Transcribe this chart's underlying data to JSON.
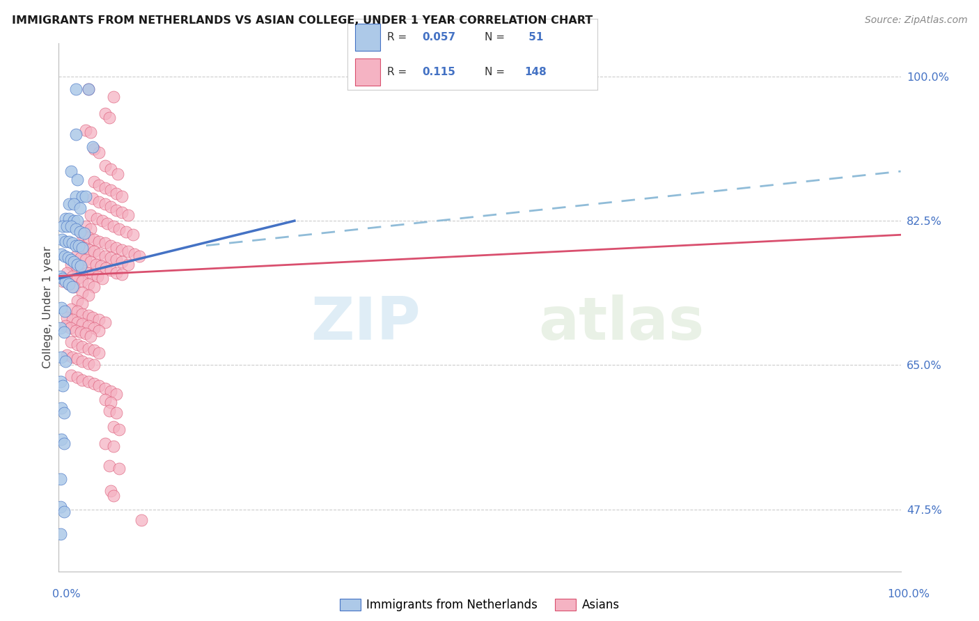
{
  "title": "IMMIGRANTS FROM NETHERLANDS VS ASIAN COLLEGE, UNDER 1 YEAR CORRELATION CHART",
  "source": "Source: ZipAtlas.com",
  "ylabel": "College, Under 1 year",
  "right_yticks": [
    "47.5%",
    "65.0%",
    "82.5%",
    "100.0%"
  ],
  "right_ytick_vals": [
    0.475,
    0.65,
    0.825,
    1.0
  ],
  "color_blue": "#adc9e8",
  "color_pink": "#f5b3c3",
  "line_blue": "#4472c4",
  "line_pink": "#d94f6e",
  "line_dashed_color": "#90bcd8",
  "watermark_zip": "ZIP",
  "watermark_atlas": "atlas",
  "xlim": [
    0.0,
    1.0
  ],
  "ylim": [
    0.4,
    1.04
  ],
  "grid_yvals": [
    0.475,
    0.65,
    0.825,
    1.0
  ],
  "blue_trend_x": [
    0.0,
    0.28
  ],
  "blue_trend_y": [
    0.755,
    0.825
  ],
  "pink_trend_x": [
    0.0,
    1.0
  ],
  "pink_trend_y": [
    0.758,
    0.808
  ],
  "dashed_trend_x": [
    0.175,
    1.0
  ],
  "dashed_trend_y": [
    0.795,
    0.885
  ],
  "blue_points": [
    [
      0.02,
      0.985
    ],
    [
      0.035,
      0.985
    ],
    [
      0.02,
      0.93
    ],
    [
      0.04,
      0.915
    ],
    [
      0.015,
      0.885
    ],
    [
      0.022,
      0.875
    ],
    [
      0.02,
      0.855
    ],
    [
      0.028,
      0.855
    ],
    [
      0.032,
      0.855
    ],
    [
      0.012,
      0.845
    ],
    [
      0.018,
      0.845
    ],
    [
      0.025,
      0.84
    ],
    [
      0.008,
      0.828
    ],
    [
      0.012,
      0.828
    ],
    [
      0.018,
      0.825
    ],
    [
      0.022,
      0.825
    ],
    [
      0.005,
      0.818
    ],
    [
      0.01,
      0.818
    ],
    [
      0.015,
      0.818
    ],
    [
      0.02,
      0.815
    ],
    [
      0.025,
      0.812
    ],
    [
      0.03,
      0.81
    ],
    [
      0.004,
      0.802
    ],
    [
      0.008,
      0.8
    ],
    [
      0.012,
      0.8
    ],
    [
      0.016,
      0.798
    ],
    [
      0.02,
      0.795
    ],
    [
      0.024,
      0.795
    ],
    [
      0.028,
      0.792
    ],
    [
      0.003,
      0.785
    ],
    [
      0.007,
      0.782
    ],
    [
      0.011,
      0.78
    ],
    [
      0.015,
      0.778
    ],
    [
      0.018,
      0.775
    ],
    [
      0.022,
      0.772
    ],
    [
      0.026,
      0.77
    ],
    [
      0.002,
      0.758
    ],
    [
      0.005,
      0.755
    ],
    [
      0.008,
      0.752
    ],
    [
      0.012,
      0.748
    ],
    [
      0.016,
      0.745
    ],
    [
      0.003,
      0.72
    ],
    [
      0.007,
      0.715
    ],
    [
      0.002,
      0.695
    ],
    [
      0.006,
      0.69
    ],
    [
      0.003,
      0.66
    ],
    [
      0.008,
      0.655
    ],
    [
      0.002,
      0.63
    ],
    [
      0.005,
      0.625
    ],
    [
      0.003,
      0.598
    ],
    [
      0.006,
      0.592
    ],
    [
      0.003,
      0.56
    ],
    [
      0.006,
      0.555
    ],
    [
      0.002,
      0.512
    ],
    [
      0.002,
      0.478
    ],
    [
      0.006,
      0.472
    ],
    [
      0.002,
      0.445
    ]
  ],
  "pink_points": [
    [
      0.035,
      0.985
    ],
    [
      0.065,
      0.975
    ],
    [
      0.055,
      0.955
    ],
    [
      0.06,
      0.95
    ],
    [
      0.032,
      0.935
    ],
    [
      0.038,
      0.932
    ],
    [
      0.042,
      0.912
    ],
    [
      0.048,
      0.908
    ],
    [
      0.055,
      0.892
    ],
    [
      0.062,
      0.888
    ],
    [
      0.07,
      0.882
    ],
    [
      0.042,
      0.872
    ],
    [
      0.048,
      0.868
    ],
    [
      0.055,
      0.865
    ],
    [
      0.062,
      0.862
    ],
    [
      0.068,
      0.858
    ],
    [
      0.075,
      0.855
    ],
    [
      0.04,
      0.852
    ],
    [
      0.048,
      0.848
    ],
    [
      0.055,
      0.845
    ],
    [
      0.062,
      0.842
    ],
    [
      0.068,
      0.838
    ],
    [
      0.075,
      0.835
    ],
    [
      0.082,
      0.832
    ],
    [
      0.038,
      0.832
    ],
    [
      0.045,
      0.828
    ],
    [
      0.052,
      0.825
    ],
    [
      0.058,
      0.822
    ],
    [
      0.065,
      0.818
    ],
    [
      0.072,
      0.815
    ],
    [
      0.08,
      0.812
    ],
    [
      0.088,
      0.808
    ],
    [
      0.032,
      0.818
    ],
    [
      0.038,
      0.815
    ],
    [
      0.028,
      0.808
    ],
    [
      0.035,
      0.805
    ],
    [
      0.042,
      0.802
    ],
    [
      0.048,
      0.8
    ],
    [
      0.055,
      0.798
    ],
    [
      0.062,
      0.795
    ],
    [
      0.068,
      0.792
    ],
    [
      0.075,
      0.79
    ],
    [
      0.082,
      0.788
    ],
    [
      0.09,
      0.785
    ],
    [
      0.096,
      0.782
    ],
    [
      0.025,
      0.795
    ],
    [
      0.03,
      0.792
    ],
    [
      0.036,
      0.79
    ],
    [
      0.042,
      0.788
    ],
    [
      0.048,
      0.785
    ],
    [
      0.055,
      0.782
    ],
    [
      0.062,
      0.78
    ],
    [
      0.068,
      0.778
    ],
    [
      0.075,
      0.775
    ],
    [
      0.082,
      0.772
    ],
    [
      0.02,
      0.782
    ],
    [
      0.026,
      0.78
    ],
    [
      0.032,
      0.778
    ],
    [
      0.038,
      0.775
    ],
    [
      0.044,
      0.772
    ],
    [
      0.05,
      0.77
    ],
    [
      0.056,
      0.768
    ],
    [
      0.062,
      0.765
    ],
    [
      0.068,
      0.762
    ],
    [
      0.075,
      0.76
    ],
    [
      0.015,
      0.772
    ],
    [
      0.022,
      0.768
    ],
    [
      0.028,
      0.765
    ],
    [
      0.034,
      0.762
    ],
    [
      0.04,
      0.76
    ],
    [
      0.046,
      0.758
    ],
    [
      0.052,
      0.755
    ],
    [
      0.01,
      0.762
    ],
    [
      0.016,
      0.758
    ],
    [
      0.022,
      0.755
    ],
    [
      0.028,
      0.752
    ],
    [
      0.005,
      0.752
    ],
    [
      0.012,
      0.748
    ],
    [
      0.018,
      0.745
    ],
    [
      0.035,
      0.748
    ],
    [
      0.042,
      0.745
    ],
    [
      0.028,
      0.738
    ],
    [
      0.035,
      0.735
    ],
    [
      0.022,
      0.728
    ],
    [
      0.028,
      0.725
    ],
    [
      0.015,
      0.718
    ],
    [
      0.022,
      0.715
    ],
    [
      0.028,
      0.712
    ],
    [
      0.035,
      0.71
    ],
    [
      0.04,
      0.708
    ],
    [
      0.048,
      0.705
    ],
    [
      0.055,
      0.702
    ],
    [
      0.01,
      0.708
    ],
    [
      0.016,
      0.705
    ],
    [
      0.022,
      0.702
    ],
    [
      0.028,
      0.7
    ],
    [
      0.035,
      0.698
    ],
    [
      0.042,
      0.695
    ],
    [
      0.048,
      0.692
    ],
    [
      0.008,
      0.698
    ],
    [
      0.014,
      0.695
    ],
    [
      0.02,
      0.692
    ],
    [
      0.026,
      0.69
    ],
    [
      0.032,
      0.688
    ],
    [
      0.038,
      0.685
    ],
    [
      0.015,
      0.678
    ],
    [
      0.022,
      0.675
    ],
    [
      0.028,
      0.672
    ],
    [
      0.035,
      0.67
    ],
    [
      0.042,
      0.668
    ],
    [
      0.048,
      0.665
    ],
    [
      0.01,
      0.662
    ],
    [
      0.016,
      0.66
    ],
    [
      0.022,
      0.658
    ],
    [
      0.028,
      0.655
    ],
    [
      0.035,
      0.652
    ],
    [
      0.042,
      0.65
    ],
    [
      0.015,
      0.638
    ],
    [
      0.022,
      0.635
    ],
    [
      0.028,
      0.632
    ],
    [
      0.035,
      0.63
    ],
    [
      0.042,
      0.628
    ],
    [
      0.048,
      0.625
    ],
    [
      0.055,
      0.622
    ],
    [
      0.062,
      0.618
    ],
    [
      0.068,
      0.615
    ],
    [
      0.055,
      0.608
    ],
    [
      0.062,
      0.605
    ],
    [
      0.06,
      0.595
    ],
    [
      0.068,
      0.592
    ],
    [
      0.065,
      0.575
    ],
    [
      0.072,
      0.572
    ],
    [
      0.055,
      0.555
    ],
    [
      0.065,
      0.552
    ],
    [
      0.06,
      0.528
    ],
    [
      0.072,
      0.525
    ],
    [
      0.062,
      0.498
    ],
    [
      0.065,
      0.492
    ],
    [
      0.098,
      0.462
    ]
  ]
}
